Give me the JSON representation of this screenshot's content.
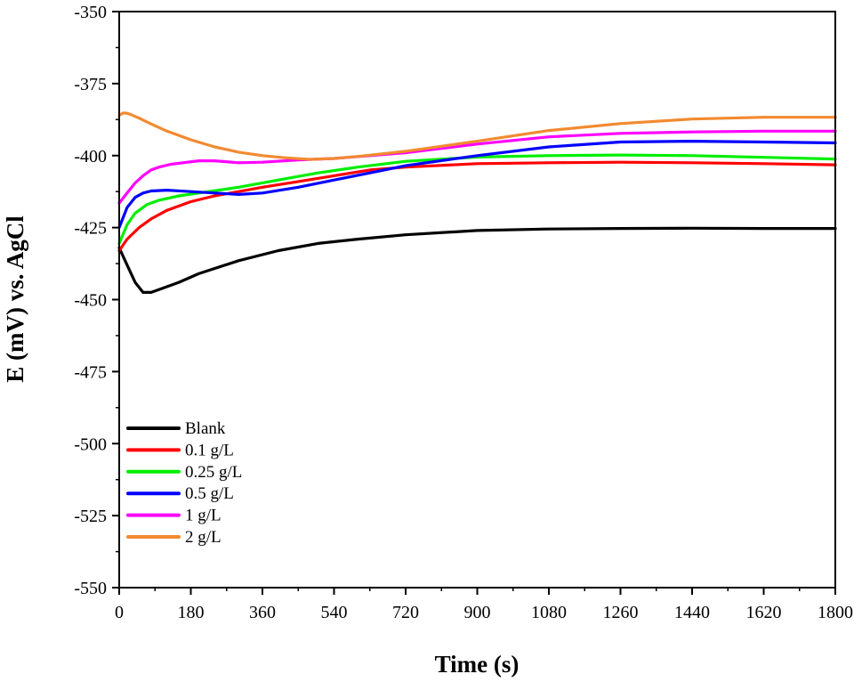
{
  "chart_data": {
    "type": "line",
    "xlabel": "Time (s)",
    "ylabel": "E (mV) vs. AgCl",
    "xlim": [
      0,
      1800
    ],
    "ylim": [
      -550,
      -350
    ],
    "xticks": [
      0,
      180,
      360,
      540,
      720,
      900,
      1080,
      1260,
      1440,
      1620,
      1800
    ],
    "yticks": [
      -350,
      -375,
      -400,
      -425,
      -450,
      -475,
      -500,
      -525,
      -550
    ],
    "grid": false,
    "legend_position": "bottom-left",
    "series": [
      {
        "name": "Blank",
        "color": "#000000",
        "x": [
          0,
          20,
          40,
          60,
          80,
          100,
          150,
          200,
          300,
          400,
          500,
          600,
          720,
          900,
          1080,
          1260,
          1440,
          1620,
          1800
        ],
        "y": [
          -432,
          -438,
          -444,
          -447.5,
          -447.5,
          -446.5,
          -444,
          -441,
          -436.5,
          -433,
          -430.5,
          -429,
          -427.5,
          -426,
          -425.5,
          -425.3,
          -425.2,
          -425.3,
          -425.3
        ]
      },
      {
        "name": "0.1 g/L",
        "color": "#ff0000",
        "x": [
          0,
          20,
          50,
          80,
          120,
          180,
          240,
          300,
          360,
          450,
          540,
          630,
          720,
          900,
          1080,
          1260,
          1440,
          1620,
          1800
        ],
        "y": [
          -433,
          -429,
          -425,
          -422,
          -419,
          -416,
          -414,
          -412.5,
          -411,
          -409,
          -407,
          -405,
          -404,
          -402.8,
          -402.5,
          -402.3,
          -402.5,
          -402.8,
          -403.2
        ]
      },
      {
        "name": "0.25 g/L",
        "color": "#00ee00",
        "x": [
          0,
          20,
          40,
          70,
          100,
          150,
          200,
          300,
          400,
          500,
          600,
          720,
          900,
          1080,
          1260,
          1440,
          1620,
          1800
        ],
        "y": [
          -430.5,
          -424,
          -420,
          -417,
          -415.5,
          -414,
          -413,
          -411,
          -408.5,
          -406,
          -404,
          -402,
          -400.5,
          -400,
          -399.8,
          -400,
          -400.6,
          -401.2
        ]
      },
      {
        "name": "0.5 g/L",
        "color": "#0000ff",
        "x": [
          0,
          20,
          40,
          60,
          80,
          120,
          180,
          240,
          300,
          360,
          450,
          540,
          630,
          720,
          900,
          1080,
          1260,
          1440,
          1620,
          1800
        ],
        "y": [
          -425,
          -418,
          -414.5,
          -413,
          -412.3,
          -412,
          -412.5,
          -413,
          -413.5,
          -413,
          -411,
          -408.5,
          -406,
          -403.5,
          -400,
          -397,
          -395.3,
          -395,
          -395.3,
          -395.6
        ]
      },
      {
        "name": "1 g/L",
        "color": "#ff00ff",
        "x": [
          0,
          20,
          40,
          60,
          80,
          100,
          130,
          160,
          200,
          240,
          300,
          360,
          450,
          540,
          630,
          720,
          900,
          1080,
          1260,
          1440,
          1620,
          1800
        ],
        "y": [
          -416.5,
          -413,
          -409.5,
          -407,
          -405,
          -404,
          -403,
          -402.5,
          -401.8,
          -401.8,
          -402.5,
          -402.3,
          -401.5,
          -401,
          -400,
          -399,
          -396,
          -393.5,
          -392.3,
          -391.8,
          -391.5,
          -391.5
        ]
      },
      {
        "name": "2 g/L",
        "color": "#f28a30",
        "x": [
          0,
          10,
          20,
          30,
          50,
          80,
          120,
          180,
          240,
          300,
          360,
          420,
          480,
          540,
          600,
          660,
          720,
          900,
          1080,
          1260,
          1440,
          1620,
          1800
        ],
        "y": [
          -386,
          -385.2,
          -385.3,
          -385.8,
          -387,
          -389,
          -391.5,
          -394.5,
          -397,
          -398.8,
          -400,
          -400.8,
          -401.3,
          -401,
          -400.3,
          -399.4,
          -398.5,
          -395,
          -391.3,
          -388.9,
          -387.3,
          -386.7,
          -386.7
        ]
      }
    ]
  }
}
